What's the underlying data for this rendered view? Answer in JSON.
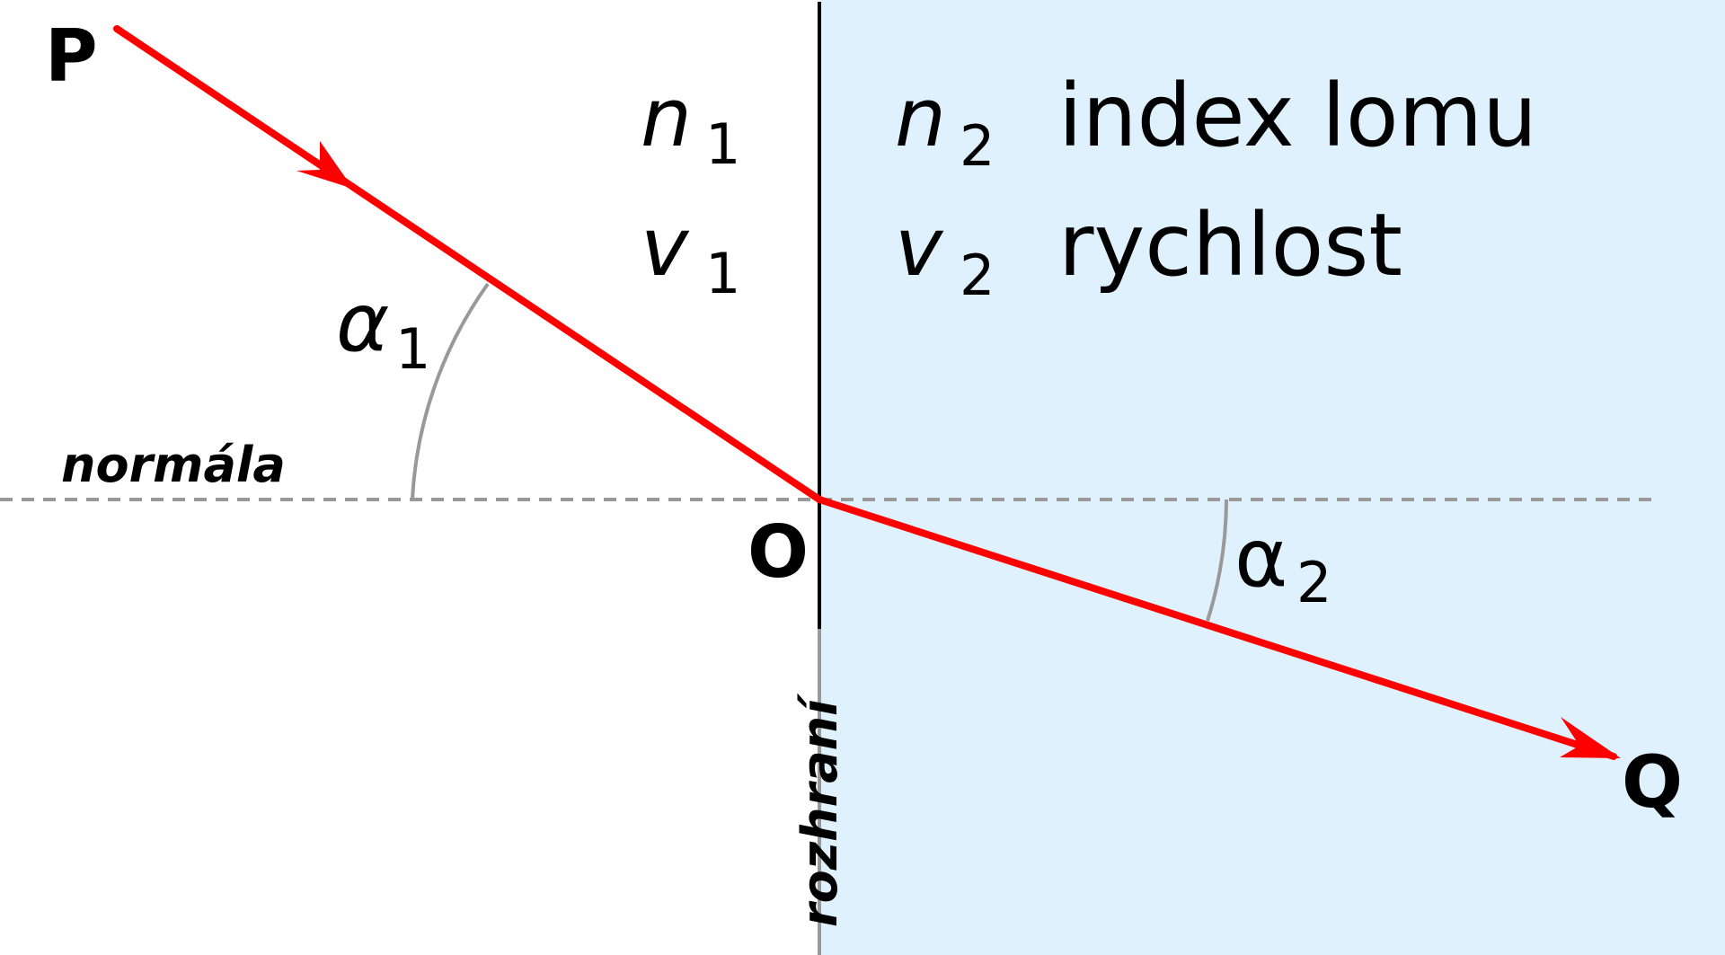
{
  "colors": {
    "medium2": "#dff1fc",
    "ray": "#ff0000",
    "interface_line": "#000000",
    "interface_lower": "#999999",
    "normal_line": "#999999",
    "angle_arc": "#999999",
    "text": "#000000"
  },
  "points": {
    "p": "P",
    "o": "O",
    "q": "Q"
  },
  "medium1": {
    "n_symbol": "n",
    "n_sub": "1",
    "v_symbol": "v",
    "v_sub": "1"
  },
  "medium2": {
    "n_symbol": "n",
    "n_sub": "2",
    "n_desc": "index lomu",
    "v_symbol": "v",
    "v_sub": "2",
    "v_desc": "rychlost"
  },
  "angles": {
    "alpha1_symbol": "α",
    "alpha1_sub": "1",
    "alpha2_symbol": "α",
    "alpha2_sub": "2"
  },
  "labels": {
    "normal": "normála",
    "interface": "rozhraní"
  }
}
